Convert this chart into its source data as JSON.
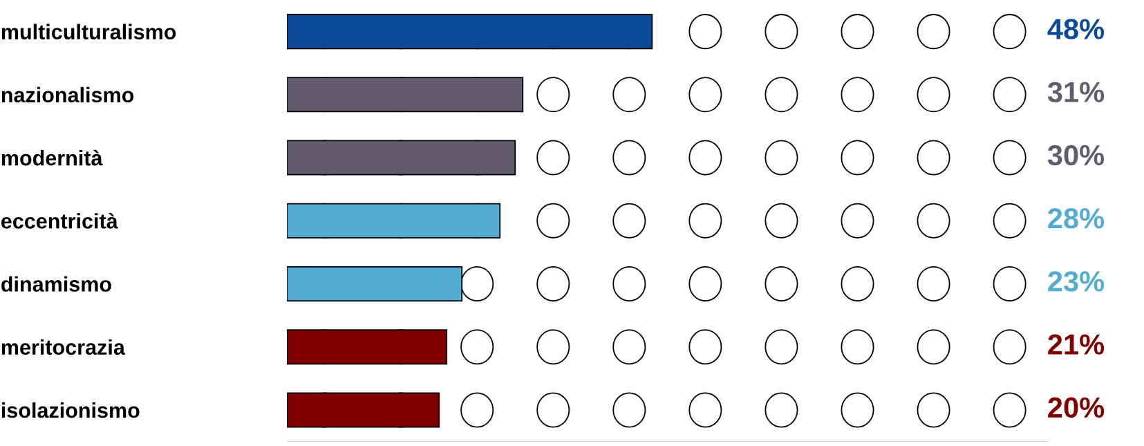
{
  "chart_data": {
    "type": "bar",
    "orientation": "horizontal",
    "categories": [
      "multiculturalismo",
      "nazionalismo",
      "modernità",
      "eccentricità",
      "dinamismo",
      "meritocrazia",
      "isolazionismo"
    ],
    "values": [
      48,
      31,
      30,
      28,
      23,
      21,
      20
    ],
    "colors": [
      "#0b4a99",
      "#625b6f",
      "#625b6f",
      "#52abd0",
      "#52abd0",
      "#800000",
      "#800000"
    ],
    "value_labels": [
      "48%",
      "31%",
      "30%",
      "28%",
      "23%",
      "21%",
      "20%"
    ],
    "xlim": [
      0,
      100
    ],
    "tick_labels": "y",
    "grid": false,
    "legend": false
  }
}
